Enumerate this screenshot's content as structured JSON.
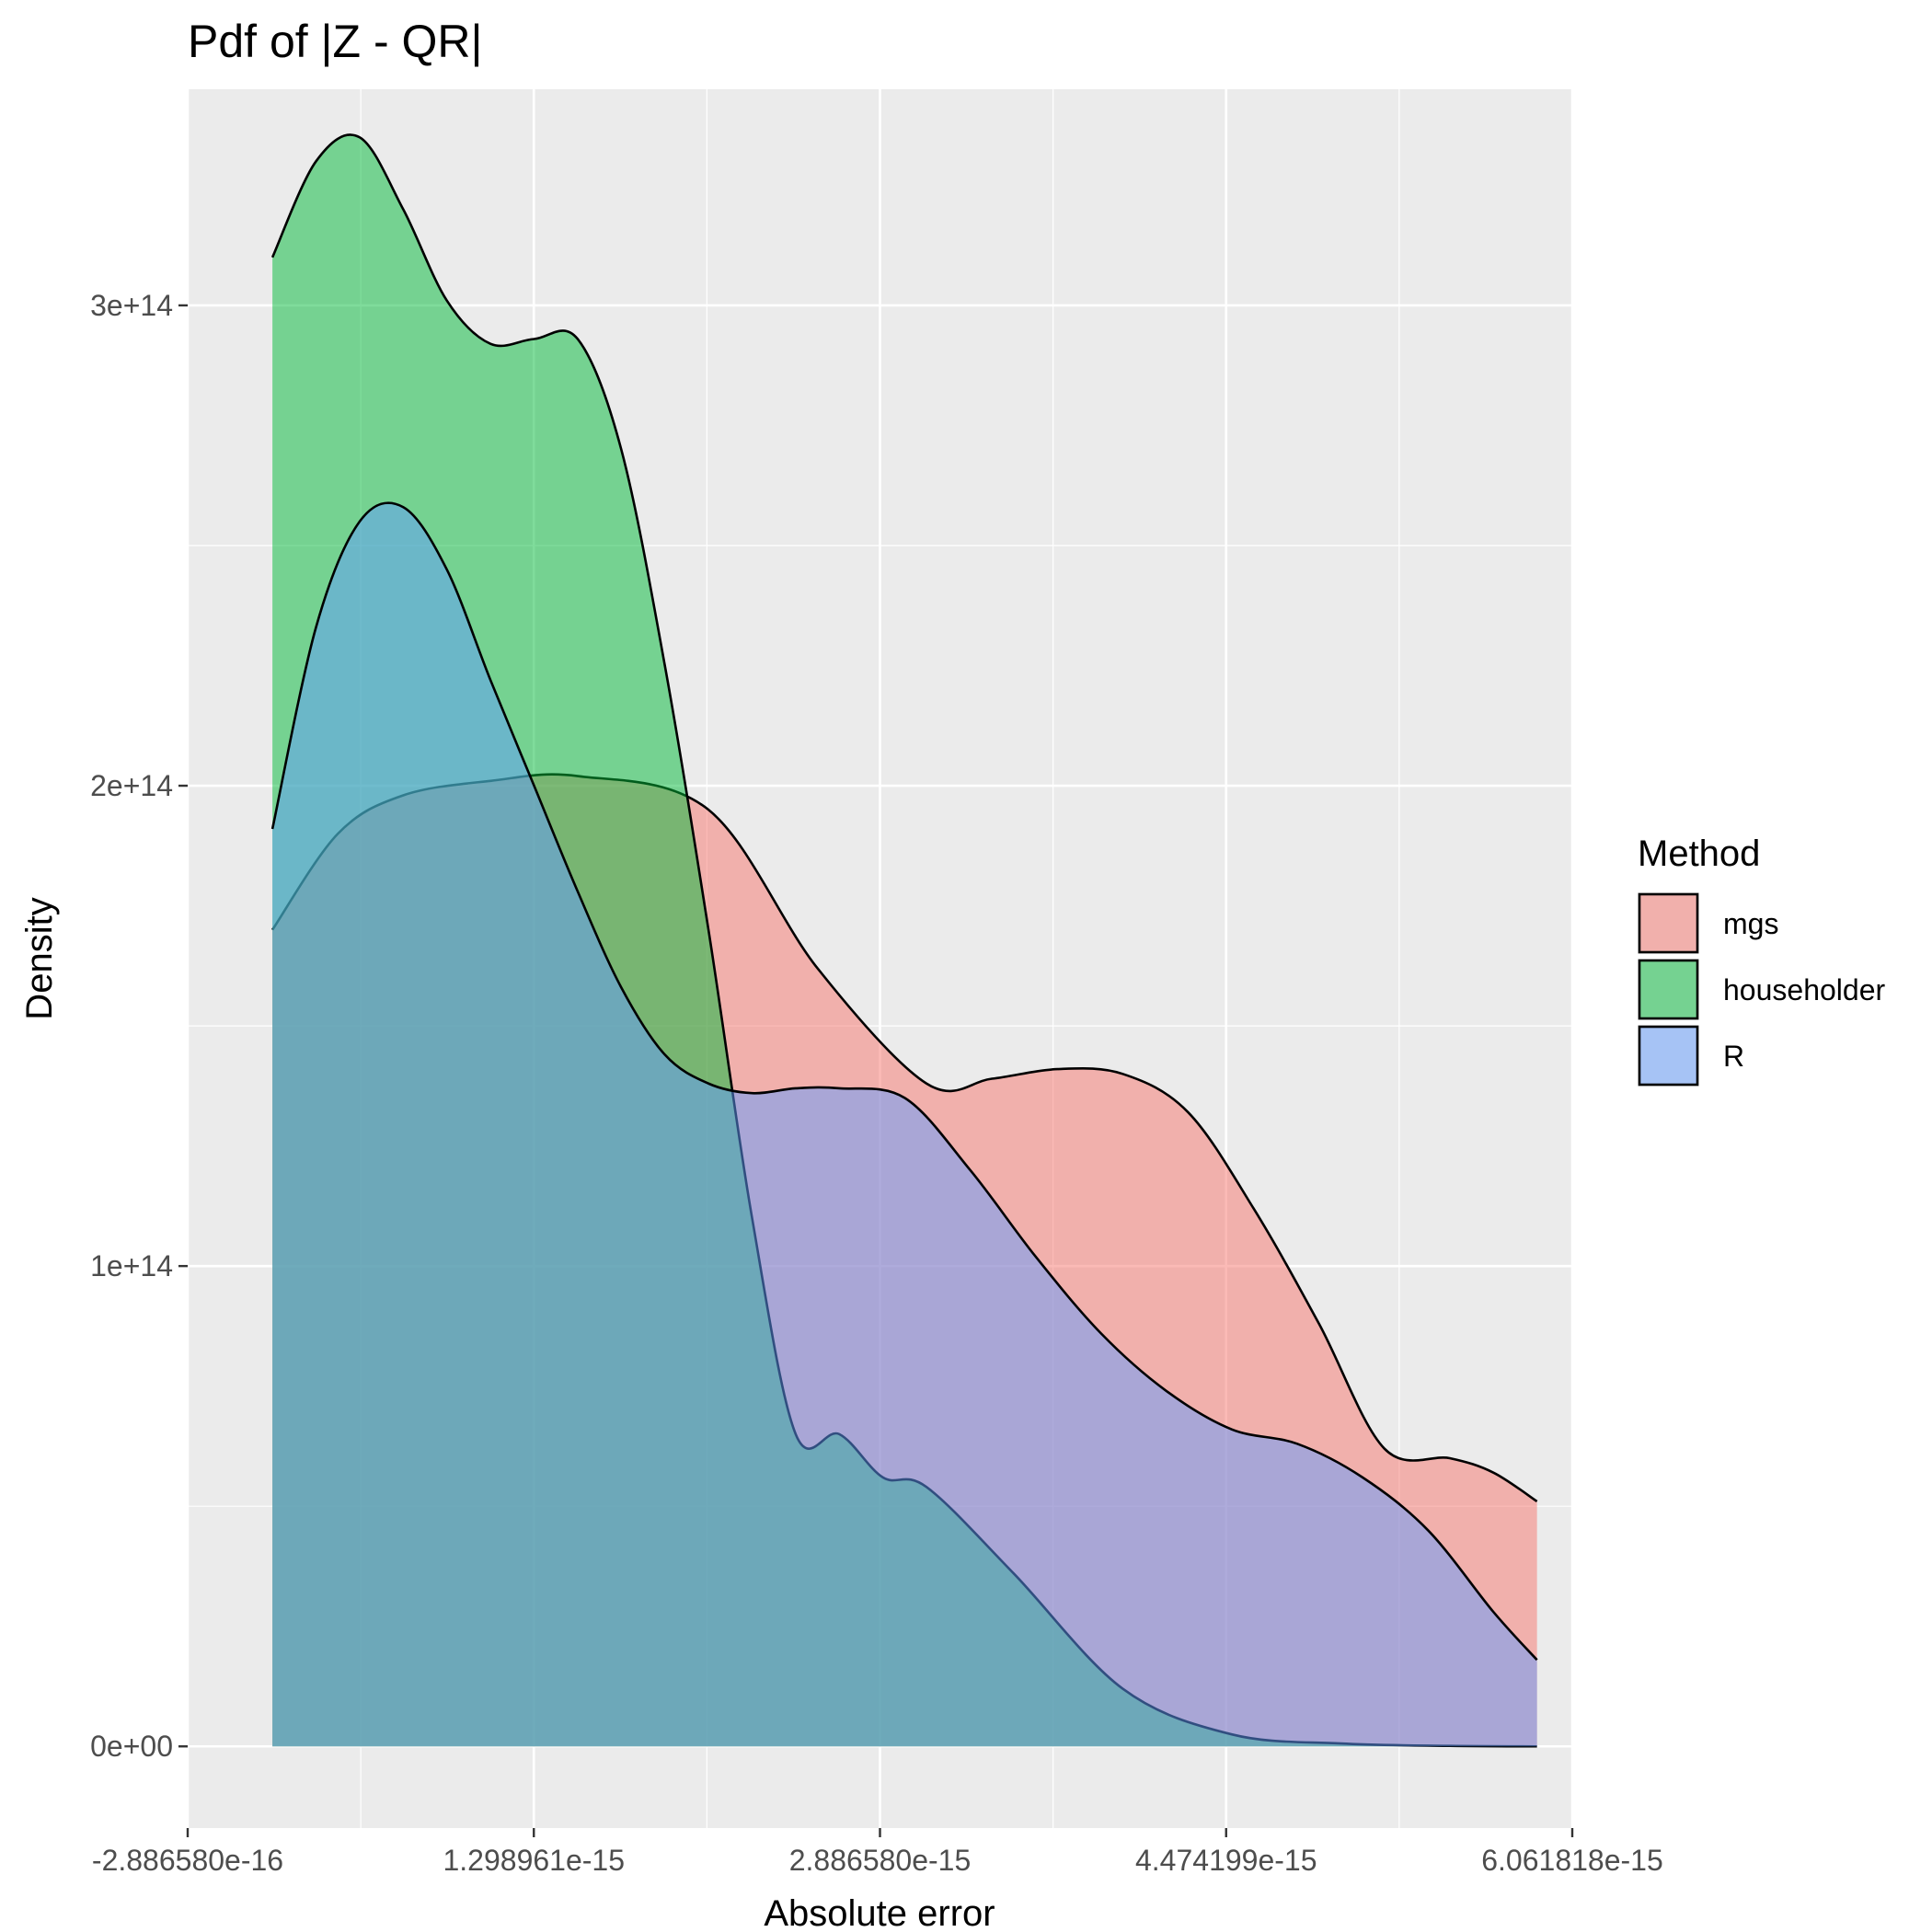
{
  "chart_data": {
    "type": "area",
    "title": "Pdf of |Z - QR|",
    "xlabel": "Absolute error",
    "ylabel": "Density",
    "xlim": [
      -2.88658e-16,
      6.061818e-15
    ],
    "ylim": [
      -17000000000000.0,
      345000000000000.0
    ],
    "x_ticks": [
      -2.88658e-16,
      1.298961e-15,
      2.88658e-15,
      4.474199e-15,
      6.061818e-15
    ],
    "x_tick_labels": [
      "-2.886580e-16",
      "1.298961e-15",
      "2.886580e-15",
      "4.474199e-15",
      "6.061818e-15"
    ],
    "y_ticks": [
      0,
      100000000000000.0,
      200000000000000.0,
      300000000000000.0
    ],
    "y_tick_labels": [
      "0e+00",
      "1e+14",
      "2e+14",
      "3e+14"
    ],
    "grid": true,
    "legend": {
      "title": "Method",
      "placement": "right"
    },
    "series": [
      {
        "name": "mgs",
        "color": "#F8766D",
        "x": [
          1e-16,
          4e-16,
          7e-16,
          1.1e-15,
          1.5e-15,
          2.1e-15,
          2.6e-15,
          3.1e-15,
          3.4e-15,
          3.7e-15,
          4e-15,
          4.3e-15,
          4.6e-15,
          4.9e-15,
          5.2e-15,
          5.5e-15,
          5.7e-15,
          5.9e-15
        ],
        "y": [
          170000000000000.0,
          190000000000000.0,
          198000000000000.0,
          201000000000000.0,
          202000000000000.0,
          195000000000000.0,
          162000000000000.0,
          138000000000000.0,
          139000000000000.0,
          141000000000000.0,
          140000000000000.0,
          132000000000000.0,
          112000000000000.0,
          88000000000000.0,
          62000000000000.0,
          60000000000000.0,
          57000000000000.0,
          51000000000000.0
        ]
      },
      {
        "name": "householder",
        "color": "#00BA38",
        "x": [
          1e-16,
          3e-16,
          5e-16,
          7e-16,
          9e-16,
          1.1e-15,
          1.3e-15,
          1.5e-15,
          1.7e-15,
          1.9e-15,
          2.1e-15,
          2.3e-15,
          2.5e-15,
          2.7e-15,
          2.9e-15,
          3.1e-15,
          3.5e-15,
          4e-15,
          4.5e-15,
          5e-15,
          5.5e-15,
          5.9e-15
        ],
        "y": [
          310000000000000.0,
          330000000000000.0,
          335000000000000.0,
          320000000000000.0,
          301000000000000.0,
          292000000000000.0,
          293000000000000.0,
          293000000000000.0,
          270000000000000.0,
          225000000000000.0,
          170000000000000.0,
          110000000000000.0,
          65000000000000.0,
          65000000000000.0,
          56000000000000.0,
          54000000000000.0,
          36000000000000.0,
          12000000000000.0,
          2500000000000.0,
          600000000000.0,
          100000000000.0,
          0
        ]
      },
      {
        "name": "R",
        "color": "#619CFF",
        "x": [
          1e-16,
          3e-16,
          5e-16,
          7e-16,
          9e-16,
          1.1e-15,
          1.3e-15,
          1.5e-15,
          1.7e-15,
          1.9e-15,
          2.1e-15,
          2.3e-15,
          2.5e-15,
          2.7e-15,
          3e-15,
          3.3e-15,
          3.6e-15,
          3.9e-15,
          4.2e-15,
          4.5e-15,
          4.8e-15,
          5.1e-15,
          5.4e-15,
          5.7e-15,
          5.9e-15
        ],
        "y": [
          191000000000000.0,
          233000000000000.0,
          255000000000000.0,
          258000000000000.0,
          245000000000000.0,
          222000000000000.0,
          200000000000000.0,
          178000000000000.0,
          158000000000000.0,
          144000000000000.0,
          138000000000000.0,
          136000000000000.0,
          137000000000000.0,
          137000000000000.0,
          135000000000000.0,
          120000000000000.0,
          102000000000000.0,
          86000000000000.0,
          74000000000000.0,
          66000000000000.0,
          63000000000000.0,
          56000000000000.0,
          45000000000000.0,
          28000000000000.0,
          18000000000000.0
        ]
      }
    ]
  }
}
